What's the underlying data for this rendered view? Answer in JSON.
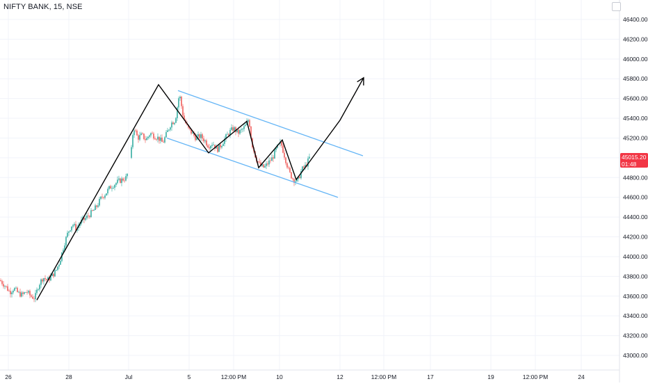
{
  "symbol_title": "NIFTY BANK, 15, NSE",
  "colors": {
    "up": "#26a69a",
    "down": "#ef5350",
    "channel": "#64b5f6",
    "price_tag": "#f23645",
    "grid": "#f0f3fa",
    "axis_text": "#131722",
    "drawing": "#000000"
  },
  "chart_data": {
    "type": "candlestick",
    "title": "NIFTY BANK, 15, NSE",
    "y_axis_side": "right",
    "ylim": [
      42900,
      46500
    ],
    "y_ticks": [
      "43000.00",
      "43200.00",
      "43400.00",
      "43600.00",
      "43800.00",
      "44000.00",
      "44200.00",
      "44400.00",
      "44600.00",
      "44800.00",
      "45000.00",
      "45200.00",
      "45400.00",
      "45600.00",
      "45800.00",
      "46000.00",
      "46200.00",
      "46400.00"
    ],
    "x_ticks": [
      "26",
      "28",
      "Jul",
      "5",
      "12:00 PM",
      "10",
      "12",
      "12:00 PM",
      "17",
      "19",
      "12:00 PM",
      "24"
    ],
    "last_price": "45015.20",
    "countdown": "01:48",
    "price_path": [
      [
        0,
        43760
      ],
      [
        8,
        43700
      ],
      [
        14,
        43640
      ],
      [
        20,
        43680
      ],
      [
        26,
        43630
      ],
      [
        32,
        43610
      ],
      [
        38,
        43650
      ],
      [
        44,
        43600
      ],
      [
        50,
        43580
      ],
      [
        56,
        43720
      ],
      [
        62,
        43790
      ],
      [
        68,
        43760
      ],
      [
        74,
        43800
      ],
      [
        80,
        43850
      ],
      [
        86,
        43950
      ],
      [
        92,
        44120
      ],
      [
        98,
        44250
      ],
      [
        104,
        44330
      ],
      [
        110,
        44280
      ],
      [
        116,
        44350
      ],
      [
        122,
        44380
      ],
      [
        128,
        44420
      ],
      [
        134,
        44460
      ],
      [
        140,
        44520
      ],
      [
        146,
        44600
      ],
      [
        152,
        44640
      ],
      [
        158,
        44700
      ],
      [
        164,
        44730
      ],
      [
        170,
        44760
      ],
      [
        176,
        44780
      ],
      [
        182,
        44800
      ],
      [
        188,
        45000
      ],
      [
        192,
        45320
      ],
      [
        198,
        45200
      ],
      [
        204,
        45230
      ],
      [
        210,
        45180
      ],
      [
        216,
        45250
      ],
      [
        222,
        45220
      ],
      [
        228,
        45200
      ],
      [
        234,
        45150
      ],
      [
        240,
        45250
      ],
      [
        246,
        45350
      ],
      [
        252,
        45380
      ],
      [
        258,
        45650
      ],
      [
        264,
        45400
      ],
      [
        270,
        45300
      ],
      [
        276,
        45250
      ],
      [
        282,
        45200
      ],
      [
        288,
        45220
      ],
      [
        294,
        45180
      ],
      [
        300,
        45120
      ],
      [
        306,
        45150
      ],
      [
        312,
        45080
      ],
      [
        318,
        45130
      ],
      [
        324,
        45200
      ],
      [
        330,
        45260
      ],
      [
        336,
        45300
      ],
      [
        342,
        45250
      ],
      [
        348,
        45280
      ],
      [
        354,
        45330
      ],
      [
        358,
        45400
      ],
      [
        362,
        45150
      ],
      [
        368,
        45000
      ],
      [
        374,
        44920
      ],
      [
        380,
        44900
      ],
      [
        386,
        44950
      ],
      [
        392,
        45000
      ],
      [
        398,
        45100
      ],
      [
        404,
        45150
      ],
      [
        410,
        45000
      ],
      [
        416,
        44850
      ],
      [
        422,
        44780
      ],
      [
        428,
        44760
      ],
      [
        434,
        44880
      ],
      [
        440,
        44920
      ],
      [
        446,
        45015
      ]
    ],
    "drawings": {
      "zigzag": [
        [
          53,
          43560
        ],
        [
          228,
          45740
        ],
        [
          300,
          45050
        ],
        [
          355,
          45370
        ],
        [
          372,
          44900
        ],
        [
          406,
          45180
        ],
        [
          426,
          44780
        ],
        [
          441,
          44920
        ],
        [
          489,
          45380
        ],
        [
          523,
          45810
        ]
      ],
      "channel_upper": [
        [
          256,
          45680
        ],
        [
          522,
          45020
        ]
      ],
      "channel_lower": [
        [
          240,
          45200
        ],
        [
          486,
          44600
        ]
      ]
    }
  }
}
